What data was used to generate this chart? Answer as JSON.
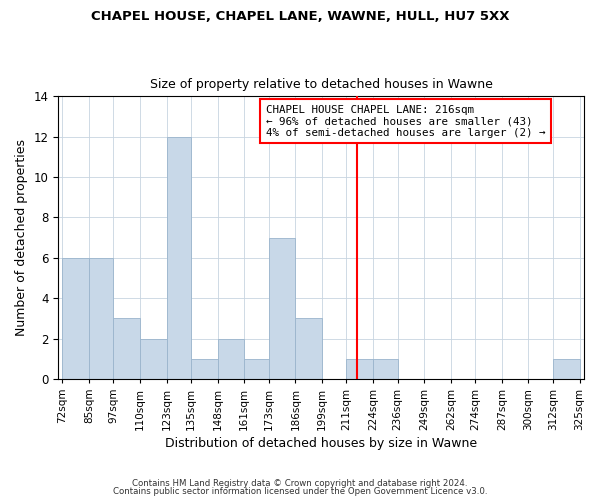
{
  "title1": "CHAPEL HOUSE, CHAPEL LANE, WAWNE, HULL, HU7 5XX",
  "title2": "Size of property relative to detached houses in Wawne",
  "xlabel": "Distribution of detached houses by size in Wawne",
  "ylabel": "Number of detached properties",
  "bin_labels": [
    "72sqm",
    "85sqm",
    "97sqm",
    "110sqm",
    "123sqm",
    "135sqm",
    "148sqm",
    "161sqm",
    "173sqm",
    "186sqm",
    "199sqm",
    "211sqm",
    "224sqm",
    "236sqm",
    "249sqm",
    "262sqm",
    "274sqm",
    "287sqm",
    "300sqm",
    "312sqm",
    "325sqm"
  ],
  "bin_edges": [
    72,
    85,
    97,
    110,
    123,
    135,
    148,
    161,
    173,
    186,
    199,
    211,
    224,
    236,
    249,
    262,
    274,
    287,
    300,
    312,
    325
  ],
  "bar_heights": [
    6,
    6,
    3,
    2,
    12,
    1,
    2,
    1,
    7,
    3,
    0,
    1,
    1,
    0,
    0,
    0,
    0,
    0,
    0,
    1,
    0
  ],
  "bar_color": "#c8d8e8",
  "bar_edgecolor": "#9ab4cc",
  "vline_x": 216,
  "vline_color": "red",
  "annotation_title": "CHAPEL HOUSE CHAPEL LANE: 216sqm",
  "annotation_line1": "← 96% of detached houses are smaller (43)",
  "annotation_line2": "4% of semi-detached houses are larger (2) →",
  "annotation_border_color": "red",
  "ylim": [
    0,
    14
  ],
  "yticks": [
    0,
    2,
    4,
    6,
    8,
    10,
    12,
    14
  ],
  "footer1": "Contains HM Land Registry data © Crown copyright and database right 2024.",
  "footer2": "Contains public sector information licensed under the Open Government Licence v3.0.",
  "background_color": "#ffffff",
  "grid_color": "#c8d4e0"
}
